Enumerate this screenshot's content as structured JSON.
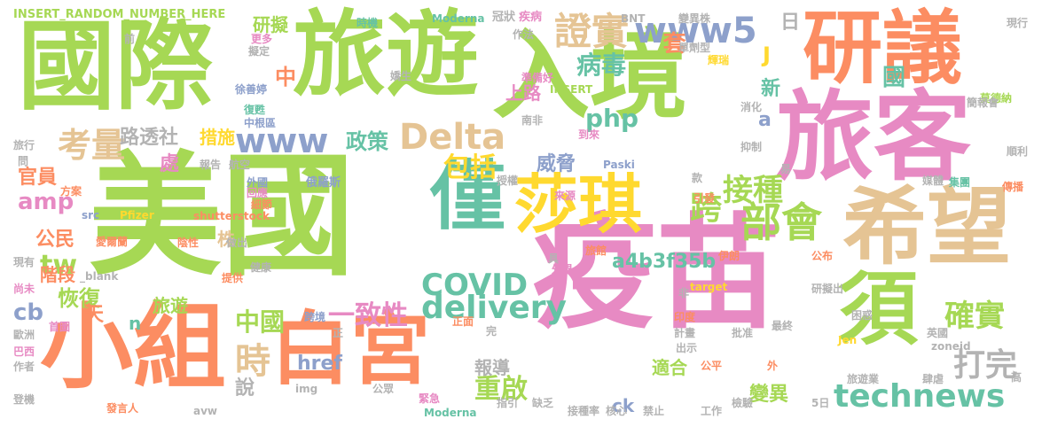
{
  "words": [
    {
      "text": "美國",
      "color": "#a6d854"
    },
    {
      "text": "疫苗",
      "color": "#e78ac3"
    },
    {
      "text": "國際",
      "color": "#a6d854"
    },
    {
      "text": "旅遊",
      "color": "#a6d854"
    },
    {
      "text": "入境",
      "color": "#a6d854"
    },
    {
      "text": "旅客",
      "color": "#e78ac3"
    },
    {
      "text": "研議",
      "color": "#fc8d62"
    },
    {
      "text": "希望",
      "color": "#e5c494"
    },
    {
      "text": "小組",
      "color": "#fc8d62"
    },
    {
      "text": "白宮",
      "color": "#fc8d62"
    },
    {
      "text": "僅",
      "color": "#66c2a5"
    },
    {
      "text": "須",
      "color": "#a6d854"
    },
    {
      "text": "莎琪",
      "color": "#ffd92f"
    },
    {
      "text": "technews",
      "color": "#66c2a5"
    },
    {
      "text": "Delta",
      "color": "#e5c494"
    },
    {
      "text": "www",
      "color": "#8da0cb"
    },
    {
      "text": "www5",
      "color": "#8da0cb"
    },
    {
      "text": "部會",
      "color": "#a6d854"
    },
    {
      "text": "證實",
      "color": "#e5c494"
    },
    {
      "text": "考量",
      "color": "#e5c494"
    },
    {
      "text": "COVID",
      "color": "#66c2a5"
    },
    {
      "text": "delivery",
      "color": "#66c2a5"
    },
    {
      "text": "a4b3f35b",
      "color": "#66c2a5"
    },
    {
      "text": "跨",
      "color": "#a6d854"
    },
    {
      "text": "接種",
      "color": "#a6d854"
    },
    {
      "text": "確實",
      "color": "#a6d854"
    },
    {
      "text": "打完",
      "color": "#b3b3b3"
    },
    {
      "text": "重啟",
      "color": "#a6d854"
    },
    {
      "text": "一致性",
      "color": "#e78ac3"
    },
    {
      "text": "時",
      "color": "#e5c494"
    },
    {
      "text": "中國",
      "color": "#a6d854"
    },
    {
      "text": "政策",
      "color": "#66c2a5"
    },
    {
      "text": "病毒",
      "color": "#66c2a5"
    },
    {
      "text": "php",
      "color": "#66c2a5"
    },
    {
      "text": "包括",
      "color": "#ffd92f"
    },
    {
      "text": "tw",
      "color": "#a6d854"
    },
    {
      "text": "amp",
      "color": "#e78ac3"
    },
    {
      "text": "cb",
      "color": "#8da0cb"
    },
    {
      "text": "公民",
      "color": "#fc8d62"
    },
    {
      "text": "研擬",
      "color": "#a6d854"
    },
    {
      "text": "路透社",
      "color": "#b3b3b3"
    },
    {
      "text": "措施",
      "color": "#ffd92f"
    },
    {
      "text": "威脅",
      "color": "#8da0cb"
    },
    {
      "text": "上路",
      "color": "#e78ac3"
    },
    {
      "text": "套",
      "color": "#fc8d62"
    },
    {
      "text": "國",
      "color": "#66c2a5"
    },
    {
      "text": "日",
      "color": "#b3b3b3"
    },
    {
      "text": "J",
      "color": "#ffd92f"
    },
    {
      "text": "新",
      "color": "#66c2a5"
    },
    {
      "text": "a",
      "color": "#8da0cb"
    },
    {
      "text": "中",
      "color": "#fc8d62"
    },
    {
      "text": "株",
      "color": "#e5c494"
    },
    {
      "text": "處",
      "color": "#e78ac3"
    },
    {
      "text": "官員",
      "color": "#fc8d62"
    },
    {
      "text": "階段",
      "color": "#fc8d62"
    },
    {
      "text": "恢復",
      "color": "#a6d854"
    },
    {
      "text": "天",
      "color": "#fc8d62"
    },
    {
      "text": "n",
      "color": "#66c2a5"
    },
    {
      "text": "旅遊",
      "color": "#a6d854"
    },
    {
      "text": "href",
      "color": "#8da0cb"
    },
    {
      "text": "說",
      "color": "#b3b3b3"
    },
    {
      "text": "報導",
      "color": "#b3b3b3"
    },
    {
      "text": "適合",
      "color": "#a6d854"
    },
    {
      "text": "變異",
      "color": "#a6d854"
    },
    {
      "text": "ck",
      "color": "#8da0cb"
    },
    {
      "text": "INSERT_RANDOM_NUMBER_HERE",
      "color": "#a6d854"
    },
    {
      "text": "時機",
      "color": "#66c2a5"
    },
    {
      "text": "Moderna",
      "color": "#66c2a5"
    },
    {
      "text": "冠狀",
      "color": "#b3b3b3"
    },
    {
      "text": "疾病",
      "color": "#e78ac3"
    },
    {
      "text": "BNT",
      "color": "#b3b3b3"
    },
    {
      "text": "變異株",
      "color": "#b3b3b3"
    },
    {
      "text": "現行",
      "color": "#b3b3b3"
    },
    {
      "text": "前",
      "color": "#b3b3b3"
    },
    {
      "text": "更多",
      "color": "#e78ac3"
    },
    {
      "text": "擬定",
      "color": "#b3b3b3"
    },
    {
      "text": "作法",
      "color": "#b3b3b3"
    },
    {
      "text": "單劑型",
      "color": "#b3b3b3"
    },
    {
      "text": "輝瑞",
      "color": "#ffd92f"
    },
    {
      "text": "準備好",
      "color": "#e78ac3"
    },
    {
      "text": "嬌生",
      "color": "#b3b3b3"
    },
    {
      "text": "INSERT",
      "color": "#a6d854"
    },
    {
      "text": "莫德納",
      "color": "#a6d854"
    },
    {
      "text": "簡報會",
      "color": "#b3b3b3"
    },
    {
      "text": "消化",
      "color": "#b3b3b3"
    },
    {
      "text": "徐善婷",
      "color": "#8da0cb"
    },
    {
      "text": "復甦",
      "color": "#66c2a5"
    },
    {
      "text": "中根區",
      "color": "#8da0cb"
    },
    {
      "text": "南非",
      "color": "#b3b3b3"
    },
    {
      "text": "抑制",
      "color": "#b3b3b3"
    },
    {
      "text": "到來",
      "color": "#e78ac3"
    },
    {
      "text": "旅行",
      "color": "#b3b3b3"
    },
    {
      "text": "問",
      "color": "#b3b3b3"
    },
    {
      "text": "報告",
      "color": "#b3b3b3"
    },
    {
      "text": "航空",
      "color": "#b3b3b3"
    },
    {
      "text": "Paski",
      "color": "#8da0cb"
    },
    {
      "text": "易",
      "color": "#b3b3b3"
    },
    {
      "text": "順利",
      "color": "#b3b3b3"
    },
    {
      "text": "方案",
      "color": "#fc8d62"
    },
    {
      "text": "外國",
      "color": "#8da0cb"
    },
    {
      "text": "回應",
      "color": "#e78ac3"
    },
    {
      "text": "細節",
      "color": "#fc8d62"
    },
    {
      "text": "俄羅斯",
      "color": "#8da0cb"
    },
    {
      "text": "授權",
      "color": "#b3b3b3"
    },
    {
      "text": "來源",
      "color": "#e78ac3"
    },
    {
      "text": "款",
      "color": "#b3b3b3"
    },
    {
      "text": "引發",
      "color": "#fc8d62"
    },
    {
      "text": "集團",
      "color": "#66c2a5"
    },
    {
      "text": "媒體",
      "color": "#b3b3b3"
    },
    {
      "text": "傳播",
      "color": "#fc8d62"
    },
    {
      "text": "src",
      "color": "#8da0cb"
    },
    {
      "text": "Pfizer",
      "color": "#ffd92f"
    },
    {
      "text": "shutterstock",
      "color": "#fc8d62"
    },
    {
      "text": "愛爾蘭",
      "color": "#fc8d62"
    },
    {
      "text": "陰性",
      "color": "#fc8d62"
    },
    {
      "text": "做出",
      "color": "#b3b3b3"
    },
    {
      "text": "伊朗",
      "color": "#fc8d62"
    },
    {
      "text": "現有",
      "color": "#b3b3b3"
    },
    {
      "text": "_blank",
      "color": "#b3b3b3"
    },
    {
      "text": "健康",
      "color": "#b3b3b3"
    },
    {
      "text": "具",
      "color": "#b3b3b3"
    },
    {
      "text": "旅館",
      "color": "#fc8d62"
    },
    {
      "text": "外界",
      "color": "#e78ac3"
    },
    {
      "text": "公布",
      "color": "#fc8d62"
    },
    {
      "text": "尚未",
      "color": "#e78ac3"
    },
    {
      "text": "提供",
      "color": "#fc8d62"
    },
    {
      "text": "target",
      "color": "#ffd92f"
    },
    {
      "text": "研擬出",
      "color": "#b3b3b3"
    },
    {
      "text": "非",
      "color": "#b3b3b3"
    },
    {
      "text": "困惑",
      "color": "#b3b3b3"
    },
    {
      "text": "跨境",
      "color": "#8da0cb"
    },
    {
      "text": "正",
      "color": "#b3b3b3"
    },
    {
      "text": "印度",
      "color": "#fc8d62"
    },
    {
      "text": "最終",
      "color": "#b3b3b3"
    },
    {
      "text": "Jen",
      "color": "#ffd92f"
    },
    {
      "text": "歐洲",
      "color": "#b3b3b3"
    },
    {
      "text": "首圖",
      "color": "#e78ac3"
    },
    {
      "text": "正面",
      "color": "#fc8d62"
    },
    {
      "text": "計畫",
      "color": "#b3b3b3"
    },
    {
      "text": "批准",
      "color": "#b3b3b3"
    },
    {
      "text": "英國",
      "color": "#b3b3b3"
    },
    {
      "text": "zoneid",
      "color": "#b3b3b3"
    },
    {
      "text": "巴西",
      "color": "#e78ac3"
    },
    {
      "text": "作者",
      "color": "#b3b3b3"
    },
    {
      "text": "完",
      "color": "#b3b3b3"
    },
    {
      "text": "出示",
      "color": "#b3b3b3"
    },
    {
      "text": "公平",
      "color": "#fc8d62"
    },
    {
      "text": "外",
      "color": "#fc8d62"
    },
    {
      "text": "旅遊業",
      "color": "#b3b3b3"
    },
    {
      "text": "肆虐",
      "color": "#b3b3b3"
    },
    {
      "text": "img",
      "color": "#b3b3b3"
    },
    {
      "text": "公眾",
      "color": "#b3b3b3"
    },
    {
      "text": "高",
      "color": "#b3b3b3"
    },
    {
      "text": "登機",
      "color": "#b3b3b3"
    },
    {
      "text": "發言人",
      "color": "#fc8d62"
    },
    {
      "text": "avw",
      "color": "#b3b3b3"
    },
    {
      "text": "緊急",
      "color": "#e78ac3"
    },
    {
      "text": "指引",
      "color": "#b3b3b3"
    },
    {
      "text": "缺乏",
      "color": "#b3b3b3"
    },
    {
      "text": "接種率",
      "color": "#b3b3b3"
    },
    {
      "text": "核心",
      "color": "#b3b3b3"
    },
    {
      "text": "禁止",
      "color": "#b3b3b3"
    },
    {
      "text": "工作",
      "color": "#b3b3b3"
    },
    {
      "text": "檢驗",
      "color": "#b3b3b3"
    },
    {
      "text": "5日",
      "color": "#b3b3b3"
    },
    {
      "text": "Moderna",
      "color": "#66c2a5"
    }
  ]
}
